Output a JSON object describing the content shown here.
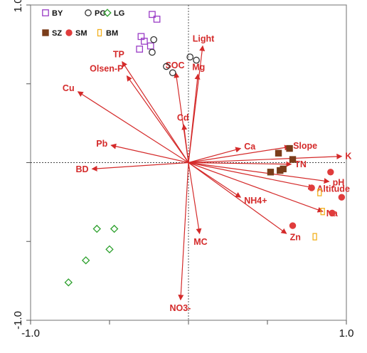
{
  "chart_data": {
    "type": "scatter",
    "title": "",
    "xlabel": "",
    "ylabel": "",
    "xlim": [
      -1.0,
      1.0
    ],
    "ylim": [
      -1.0,
      1.0
    ],
    "x_ticks": [
      -1.0,
      -0.5,
      0.0,
      0.5,
      1.0
    ],
    "y_ticks": [
      -1.0,
      -0.5,
      0.0,
      0.5,
      1.0
    ],
    "x_tick_labels": [
      "-1.0",
      "",
      "",
      "",
      "1.0"
    ],
    "y_tick_labels": [
      "-1.0",
      "",
      "",
      "",
      "1.0"
    ],
    "legend_position": "top-left",
    "axis_color": "#888888",
    "vector_color": "#d42a2a",
    "zero_lines": "dotted",
    "series": [
      {
        "name": "BY",
        "marker": "square",
        "color": "#9a3cc6",
        "points": [
          [
            -0.23,
            0.94
          ],
          [
            -0.2,
            0.91
          ],
          [
            -0.3,
            0.8
          ],
          [
            -0.28,
            0.77
          ],
          [
            -0.31,
            0.72
          ],
          [
            -0.24,
            0.74
          ]
        ]
      },
      {
        "name": "PG",
        "marker": "circle",
        "color": "#333333",
        "points": [
          [
            -0.22,
            0.78
          ],
          [
            -0.23,
            0.7
          ],
          [
            0.01,
            0.67
          ],
          [
            0.05,
            0.65
          ],
          [
            -0.14,
            0.61
          ],
          [
            -0.1,
            0.57
          ]
        ]
      },
      {
        "name": "LG",
        "marker": "diamond",
        "color": "#2ca02c",
        "points": [
          [
            -0.58,
            -0.42
          ],
          [
            -0.47,
            -0.42
          ],
          [
            -0.5,
            -0.55
          ],
          [
            -0.65,
            -0.62
          ],
          [
            -0.76,
            -0.76
          ]
        ]
      },
      {
        "name": "SZ",
        "marker": "filled-square",
        "color": "#7a3d1a",
        "points": [
          [
            0.57,
            0.06
          ],
          [
            0.64,
            0.09
          ],
          [
            0.66,
            0.02
          ],
          [
            0.52,
            -0.06
          ],
          [
            0.58,
            -0.05
          ],
          [
            0.6,
            -0.04
          ]
        ]
      },
      {
        "name": "SM",
        "marker": "filled-circle",
        "color": "#e03c3c",
        "points": [
          [
            0.9,
            -0.06
          ],
          [
            0.78,
            -0.16
          ],
          [
            0.97,
            -0.22
          ],
          [
            0.91,
            -0.32
          ],
          [
            0.66,
            -0.4
          ]
        ]
      },
      {
        "name": "BM",
        "marker": "open-rect",
        "color": "#f2b01e",
        "points": [
          [
            0.83,
            -0.19
          ],
          [
            0.85,
            -0.31
          ],
          [
            0.8,
            -0.47
          ]
        ]
      }
    ],
    "vectors": [
      {
        "label": "Light",
        "x": 0.09,
        "y": 0.74
      },
      {
        "label": "TP",
        "x": -0.42,
        "y": 0.64
      },
      {
        "label": "Olsen-P",
        "x": -0.39,
        "y": 0.55
      },
      {
        "label": "SOC",
        "x": -0.08,
        "y": 0.57
      },
      {
        "label": "Mg",
        "x": 0.06,
        "y": 0.56
      },
      {
        "label": "Cu",
        "x": -0.7,
        "y": 0.45
      },
      {
        "label": "Cd",
        "x": -0.03,
        "y": 0.24
      },
      {
        "label": "Pb",
        "x": -0.49,
        "y": 0.11
      },
      {
        "label": "BD",
        "x": -0.61,
        "y": -0.04
      },
      {
        "label": "Ca",
        "x": 0.33,
        "y": 0.09
      },
      {
        "label": "Slope",
        "x": 0.64,
        "y": 0.1
      },
      {
        "label": "K",
        "x": 0.97,
        "y": 0.04
      },
      {
        "label": "TN",
        "x": 0.65,
        "y": -0.01
      },
      {
        "label": "pH",
        "x": 0.89,
        "y": -0.12
      },
      {
        "label": "Altitude",
        "x": 0.79,
        "y": -0.16
      },
      {
        "label": "Na",
        "x": 0.85,
        "y": -0.31
      },
      {
        "label": "NH4+",
        "x": 0.33,
        "y": -0.22
      },
      {
        "label": "Zn",
        "x": 0.62,
        "y": -0.45
      },
      {
        "label": "MC",
        "x": 0.07,
        "y": -0.45
      },
      {
        "label": "NO3-",
        "x": -0.05,
        "y": -0.87
      }
    ]
  }
}
